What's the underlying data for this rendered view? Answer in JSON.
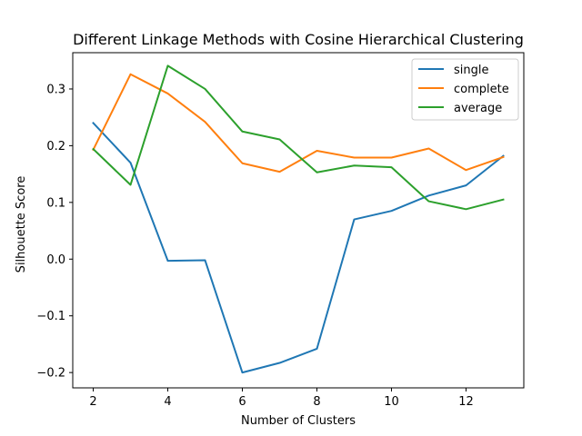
{
  "chart_data": {
    "type": "line",
    "title": "Different Linkage Methods with Cosine Hierarchical Clustering",
    "xlabel": "Number of Clusters",
    "ylabel": "Silhouette Score",
    "x": [
      2,
      3,
      4,
      5,
      6,
      7,
      8,
      9,
      10,
      11,
      12,
      13
    ],
    "xlim": [
      1.45,
      13.55
    ],
    "ylim": [
      -0.227,
      0.364
    ],
    "xticks": [
      2,
      4,
      6,
      8,
      10,
      12
    ],
    "xtick_labels": [
      "2",
      "4",
      "6",
      "8",
      "10",
      "12"
    ],
    "yticks": [
      -0.2,
      -0.1,
      0.0,
      0.1,
      0.2,
      0.3
    ],
    "ytick_labels": [
      "−0.2",
      "−0.1",
      "0.0",
      "0.1",
      "0.2",
      "0.3"
    ],
    "grid": false,
    "legend_position": "top-right",
    "series": [
      {
        "name": "single",
        "color": "#1f77b4",
        "values": [
          0.24,
          0.17,
          -0.003,
          -0.002,
          -0.2,
          -0.183,
          -0.158,
          0.07,
          0.085,
          0.112,
          0.13,
          0.182
        ]
      },
      {
        "name": "complete",
        "color": "#ff7f0e",
        "values": [
          0.193,
          0.326,
          0.292,
          0.242,
          0.169,
          0.154,
          0.191,
          0.179,
          0.179,
          0.195,
          0.157,
          0.18
        ]
      },
      {
        "name": "average",
        "color": "#2ca02c",
        "values": [
          0.194,
          0.131,
          0.341,
          0.3,
          0.225,
          0.211,
          0.153,
          0.165,
          0.162,
          0.102,
          0.088,
          0.105
        ]
      }
    ]
  }
}
